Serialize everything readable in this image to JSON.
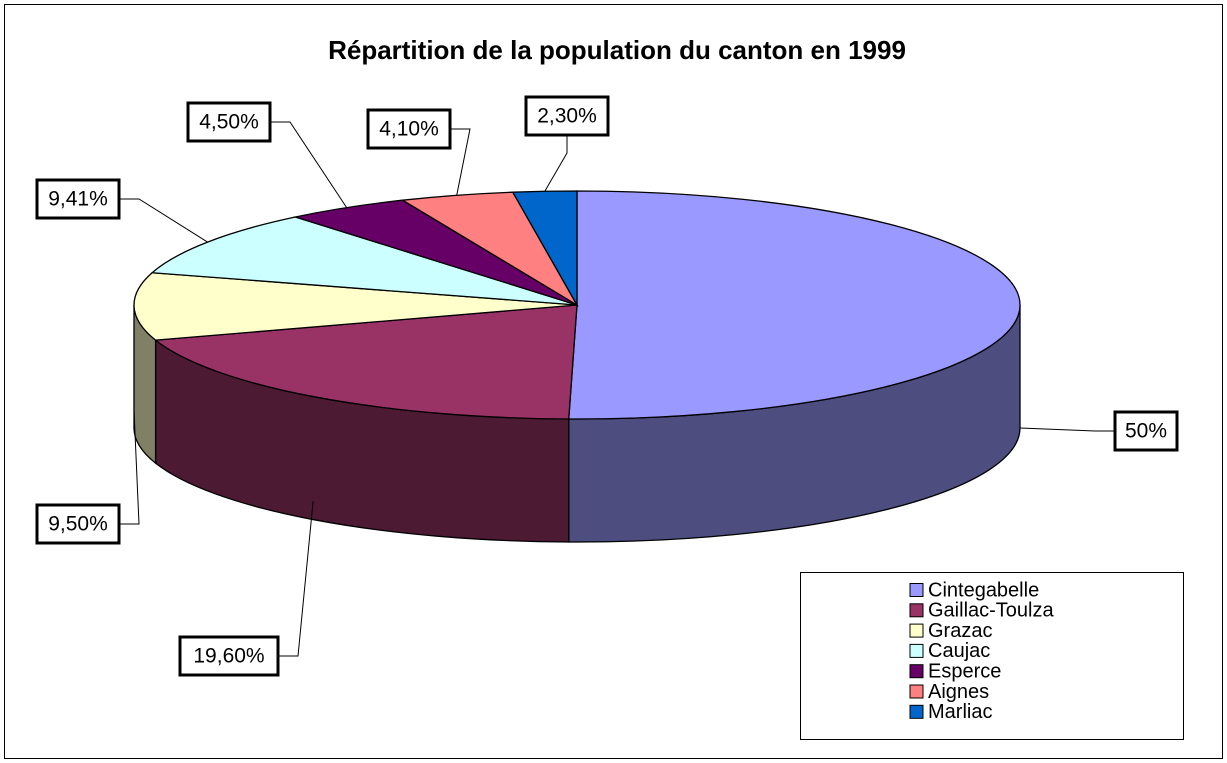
{
  "chart_data": {
    "type": "pie3d",
    "title": "Répartition de la population du canton en 1999",
    "categories": [
      "Cintegabelle",
      "Gaillac-Toulza",
      "Grazac",
      "Caujac",
      "Esperce",
      "Aignes",
      "Marliac"
    ],
    "values": [
      50,
      19.6,
      9.5,
      9.41,
      4.5,
      4.1,
      2.3
    ],
    "value_labels": [
      "50%",
      "19,60%",
      "9,50%",
      "9,41%",
      "4,50%",
      "4,10%",
      "2,30%"
    ],
    "colors": [
      "#9999ff",
      "#993366",
      "#ffffcc",
      "#ccffff",
      "#660066",
      "#ff8080",
      "#0066cc"
    ],
    "side_colors": [
      "#4d4d80",
      "#4d1a33",
      "#808066",
      "#668080",
      "#330033",
      "#804040",
      "#003366"
    ],
    "legend": "bottom-right"
  }
}
